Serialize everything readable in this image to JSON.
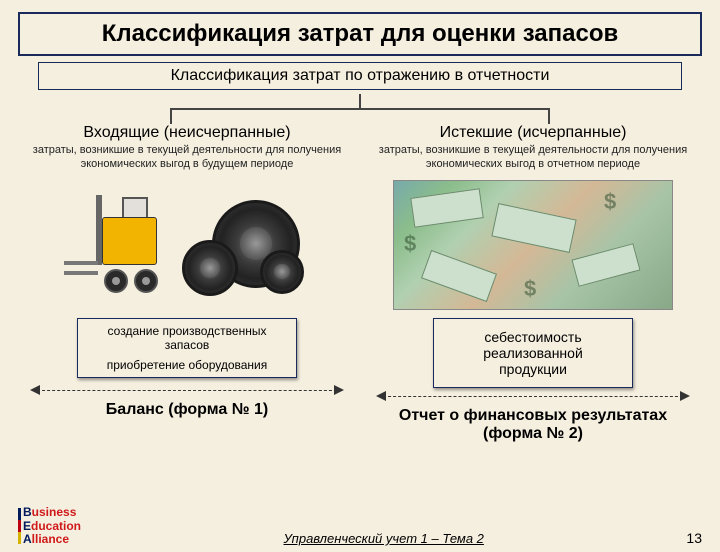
{
  "title": "Классификация затрат для оценки запасов",
  "subtitle": "Классификация затрат по отражению в отчетности",
  "left": {
    "category": "Входящие (неисчерпанные)",
    "desc": "затраты, возникшие в текущей деятельности для получения экономических выгод в будущем периоде",
    "box_line1": "создание производственных запасов",
    "box_line2": "приобретение оборудования",
    "form": "Баланс (форма № 1)"
  },
  "right": {
    "category": "Истекшие (исчерпанные)",
    "desc": "затраты, возникшие в текущей деятельности для получения экономических выгод в отчетном периоде",
    "box": "себестоимость реализованной продукции",
    "form": "Отчет о финансовых результатах (форма № 2)"
  },
  "footer": {
    "logo_b": "B",
    "logo_usiness": "usiness",
    "logo_e": "E",
    "logo_ducation": "ducation",
    "logo_a": "A",
    "logo_lliance": "lliance",
    "center": "Управленческий учет 1 – Тема 2",
    "page": "13"
  },
  "colors": {
    "bg": "#f5efe0",
    "border": "#1a2a5a",
    "forklift": "#f2b400"
  }
}
